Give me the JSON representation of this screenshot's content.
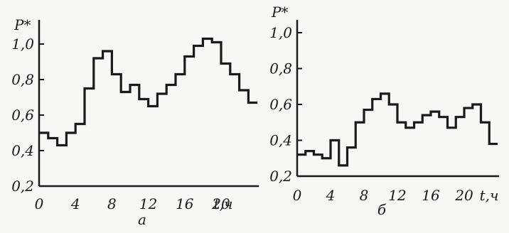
{
  "chart_data": [
    {
      "type": "line",
      "step": true,
      "panel_label": "а",
      "ylabel": "P*",
      "xlabel": "t,ч",
      "xlim": [
        0,
        24
      ],
      "ylim": [
        0.2,
        1.1
      ],
      "x_ticks": [
        "0",
        "4",
        "8",
        "12",
        "16",
        "20"
      ],
      "y_ticks": [
        "0,2",
        "0,4",
        "0,6",
        "0,8",
        "1,0"
      ],
      "y_tick_values": [
        0.2,
        0.4,
        0.6,
        0.8,
        1.0
      ],
      "x_tick_values": [
        0,
        4,
        8,
        12,
        16,
        20
      ],
      "grid": false,
      "x": [
        0,
        1,
        2,
        3,
        4,
        5,
        6,
        7,
        8,
        9,
        10,
        11,
        12,
        13,
        14,
        15,
        16,
        17,
        18,
        19,
        20,
        21,
        22,
        23
      ],
      "values": [
        0.5,
        0.47,
        0.43,
        0.5,
        0.55,
        0.75,
        0.92,
        0.96,
        0.83,
        0.73,
        0.77,
        0.69,
        0.65,
        0.72,
        0.77,
        0.83,
        0.93,
        0.99,
        1.03,
        1.01,
        0.89,
        0.83,
        0.74,
        0.67
      ]
    },
    {
      "type": "line",
      "step": true,
      "panel_label": "б",
      "ylabel": "P*",
      "xlabel": "t,ч",
      "xlim": [
        0,
        24
      ],
      "ylim": [
        0.2,
        1.1
      ],
      "x_ticks": [
        "0",
        "4",
        "8",
        "12",
        "16",
        "20"
      ],
      "y_ticks": [
        "0,2",
        "0,4",
        "0,6",
        "0,8",
        "1,0"
      ],
      "y_tick_values": [
        0.2,
        0.4,
        0.6,
        0.8,
        1.0
      ],
      "x_tick_values": [
        0,
        4,
        8,
        12,
        16,
        20
      ],
      "grid": false,
      "x": [
        0,
        1,
        2,
        3,
        4,
        5,
        6,
        7,
        8,
        9,
        10,
        11,
        12,
        13,
        14,
        15,
        16,
        17,
        18,
        19,
        20,
        21,
        22,
        23
      ],
      "values": [
        0.32,
        0.34,
        0.32,
        0.3,
        0.4,
        0.26,
        0.36,
        0.5,
        0.57,
        0.63,
        0.66,
        0.6,
        0.5,
        0.47,
        0.5,
        0.54,
        0.56,
        0.53,
        0.47,
        0.53,
        0.58,
        0.6,
        0.5,
        0.38
      ]
    }
  ],
  "colors": {
    "ink": "#1a1a1a",
    "paper": "#f7f7f4"
  }
}
